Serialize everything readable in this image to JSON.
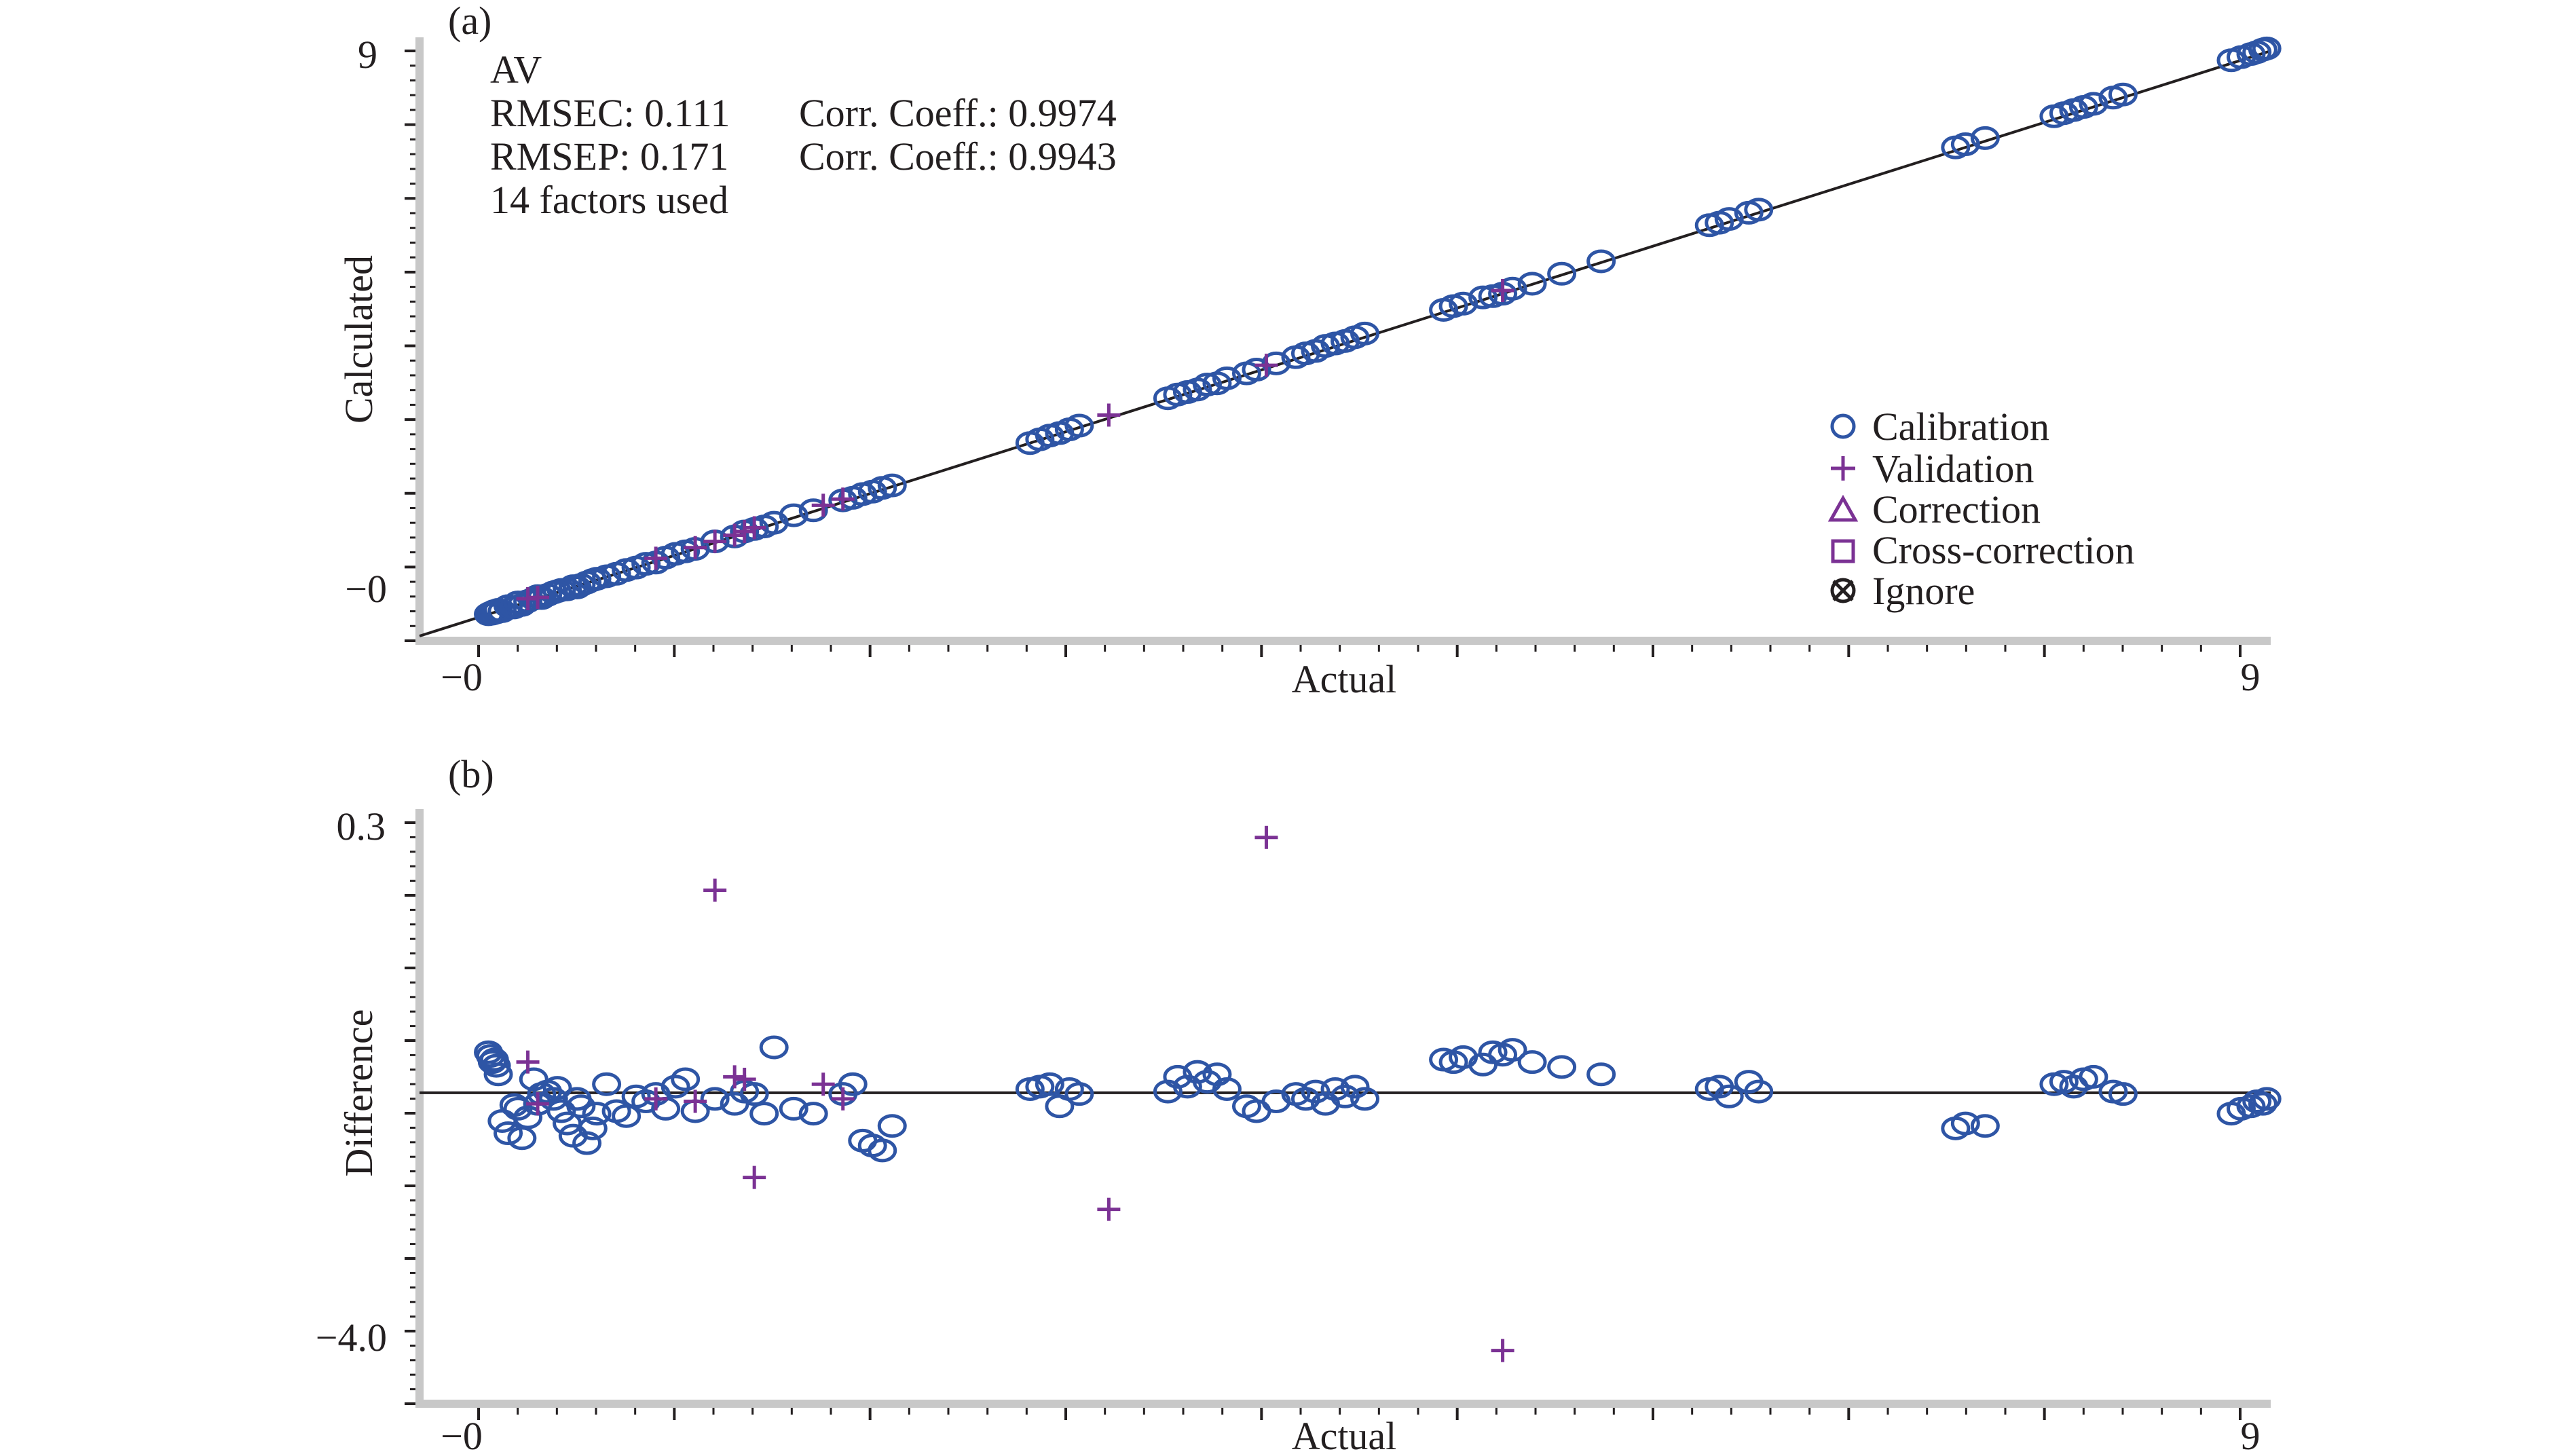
{
  "chart_data": [
    {
      "panel": "(a)",
      "type": "scatter",
      "title": "AV",
      "xlabel": "Actual",
      "ylabel": "Calculated",
      "xlim": [
        -0.3,
        9.1
      ],
      "ylim": [
        -0.3,
        9.1
      ],
      "x_tick_labels": [
        "−0",
        "9"
      ],
      "y_tick_labels": [
        "9",
        "−0"
      ],
      "stats": [
        {
          "label": "RMSEC: 0.111",
          "corr": "Corr. Coeff.: 0.9974"
        },
        {
          "label": "RMSEP: 0.171",
          "corr": "Corr. Coeff.: 0.9943"
        }
      ],
      "factors_text": "14 factors used",
      "reference_line": {
        "type": "identity",
        "slope": 1,
        "intercept": 0
      },
      "legend": {
        "placement": "right",
        "entries": [
          {
            "label": "Calibration",
            "marker": "circle",
            "color": "#2e55a5"
          },
          {
            "label": "Validation",
            "marker": "plus",
            "color": "#7b3294"
          },
          {
            "label": "Correction",
            "marker": "triangle",
            "color": "#7b3294"
          },
          {
            "label": "Cross-correction",
            "marker": "square",
            "color": "#7b3294"
          },
          {
            "label": "Ignore",
            "marker": "crossed-circle",
            "color": "#231f20"
          }
        ]
      },
      "series": [
        {
          "name": "Calibration",
          "marker": "circle",
          "color": "#2e55a5",
          "x": [
            0.05,
            0.06,
            0.07,
            0.08,
            0.09,
            0.1,
            0.12,
            0.15,
            0.18,
            0.2,
            0.22,
            0.25,
            0.28,
            0.3,
            0.32,
            0.35,
            0.38,
            0.4,
            0.42,
            0.45,
            0.48,
            0.5,
            0.52,
            0.55,
            0.58,
            0.6,
            0.65,
            0.7,
            0.75,
            0.8,
            0.85,
            0.9,
            0.95,
            1.0,
            1.05,
            1.1,
            1.2,
            1.3,
            1.35,
            1.4,
            1.45,
            1.5,
            1.6,
            1.7,
            1.85,
            1.9,
            1.95,
            2.0,
            2.05,
            2.1,
            2.8,
            2.85,
            2.9,
            2.95,
            3.0,
            3.05,
            3.5,
            3.55,
            3.6,
            3.65,
            3.7,
            3.75,
            3.8,
            3.9,
            3.95,
            4.05,
            4.15,
            4.2,
            4.25,
            4.3,
            4.35,
            4.4,
            4.45,
            4.5,
            4.9,
            4.95,
            5.0,
            5.1,
            5.15,
            5.2,
            5.25,
            5.35,
            5.5,
            5.7,
            6.25,
            6.3,
            6.35,
            6.45,
            6.5,
            7.5,
            7.55,
            7.65,
            8.0,
            8.05,
            8.1,
            8.15,
            8.2,
            8.3,
            8.35,
            8.9,
            8.95,
            9.0,
            9.03,
            9.06,
            9.08
          ],
          "y": [
            0.05,
            0.07,
            0.06,
            0.1,
            0.08,
            0.12,
            0.1,
            0.18,
            0.16,
            0.24,
            0.2,
            0.26,
            0.3,
            0.34,
            0.31,
            0.36,
            0.4,
            0.42,
            0.44,
            0.45,
            0.5,
            0.48,
            0.52,
            0.56,
            0.6,
            0.62,
            0.66,
            0.7,
            0.76,
            0.8,
            0.86,
            0.88,
            0.96,
            1.02,
            1.06,
            1.1,
            1.22,
            1.3,
            1.38,
            1.42,
            1.46,
            1.52,
            1.64,
            1.72,
            1.88,
            1.92,
            1.98,
            2.02,
            2.08,
            2.12,
            2.8,
            2.86,
            2.92,
            2.96,
            3.02,
            3.08,
            3.52,
            3.58,
            3.62,
            3.66,
            3.74,
            3.76,
            3.84,
            3.92,
            3.98,
            4.08,
            4.18,
            4.24,
            4.28,
            4.36,
            4.4,
            4.44,
            4.5,
            4.56,
            4.94,
            5.0,
            5.04,
            5.14,
            5.16,
            5.2,
            5.28,
            5.36,
            5.52,
            5.72,
            6.3,
            6.34,
            6.4,
            6.5,
            6.55,
            7.55,
            7.6,
            7.7,
            8.05,
            8.1,
            8.15,
            8.2,
            8.25,
            8.35,
            8.4,
            8.95,
            9.0,
            9.05,
            9.08,
            9.12,
            9.14
          ]
        },
        {
          "name": "Validation",
          "marker": "plus",
          "color": "#7b3294",
          "x": [
            0.25,
            0.3,
            0.9,
            1.1,
            1.2,
            1.3,
            1.35,
            1.4,
            1.75,
            1.85,
            3.2,
            4.0,
            5.2
          ],
          "y": [
            0.3,
            0.32,
            0.95,
            1.12,
            1.22,
            1.32,
            1.38,
            1.44,
            1.8,
            1.9,
            3.25,
            4.05,
            5.25
          ]
        }
      ]
    },
    {
      "panel": "(b)",
      "type": "scatter",
      "xlabel": "Actual",
      "ylabel": "Difference",
      "xlim": [
        -0.3,
        9.1
      ],
      "ylim": [
        -4.35,
        0.35
      ],
      "x_tick_labels": [
        "−0",
        "9"
      ],
      "y_tick_labels": [
        "0.3",
        "−4.0"
      ],
      "reference_line": {
        "type": "horizontal",
        "y": -1.85
      },
      "series": [
        {
          "name": "Calibration",
          "marker": "circle",
          "color": "#2e55a5",
          "x": [
            0.05,
            0.06,
            0.07,
            0.08,
            0.09,
            0.1,
            0.12,
            0.15,
            0.18,
            0.2,
            0.22,
            0.25,
            0.28,
            0.3,
            0.32,
            0.35,
            0.38,
            0.4,
            0.42,
            0.45,
            0.48,
            0.5,
            0.52,
            0.55,
            0.58,
            0.6,
            0.65,
            0.7,
            0.75,
            0.8,
            0.85,
            0.9,
            0.95,
            1.0,
            1.05,
            1.1,
            1.2,
            1.3,
            1.35,
            1.4,
            1.45,
            1.5,
            1.6,
            1.7,
            1.85,
            1.9,
            1.95,
            2.0,
            2.05,
            2.1,
            2.8,
            2.85,
            2.9,
            2.95,
            3.0,
            3.05,
            3.5,
            3.55,
            3.6,
            3.65,
            3.7,
            3.75,
            3.8,
            3.9,
            3.95,
            4.05,
            4.15,
            4.2,
            4.25,
            4.3,
            4.35,
            4.4,
            4.45,
            4.5,
            4.9,
            4.95,
            5.0,
            5.1,
            5.15,
            5.2,
            5.25,
            5.35,
            5.5,
            5.7,
            6.25,
            6.3,
            6.35,
            6.45,
            6.5,
            7.5,
            7.55,
            7.65,
            8.0,
            8.05,
            8.1,
            8.15,
            8.2,
            8.3,
            8.35,
            8.9,
            8.95,
            9.0,
            9.03,
            9.06,
            9.08
          ],
          "y": [
            -1.52,
            -1.55,
            -1.6,
            -1.58,
            -1.63,
            -1.7,
            -2.08,
            -2.18,
            -1.95,
            -1.98,
            -2.22,
            -2.05,
            -1.74,
            -1.94,
            -1.86,
            -1.84,
            -1.9,
            -1.81,
            -2.0,
            -2.1,
            -2.2,
            -1.9,
            -1.96,
            -2.26,
            -2.14,
            -2.02,
            -1.78,
            -2.0,
            -2.04,
            -1.88,
            -1.92,
            -1.86,
            -1.98,
            -1.8,
            -1.74,
            -2.0,
            -1.9,
            -1.94,
            -1.84,
            -1.86,
            -2.02,
            -1.48,
            -1.98,
            -2.02,
            -1.86,
            -1.78,
            -2.24,
            -2.28,
            -2.32,
            -2.12,
            -1.82,
            -1.8,
            -1.78,
            -1.96,
            -1.82,
            -1.86,
            -1.84,
            -1.72,
            -1.8,
            -1.68,
            -1.76,
            -1.7,
            -1.82,
            -1.96,
            -2.0,
            -1.92,
            -1.86,
            -1.9,
            -1.84,
            -1.94,
            -1.82,
            -1.88,
            -1.8,
            -1.9,
            -1.58,
            -1.6,
            -1.56,
            -1.62,
            -1.52,
            -1.54,
            -1.5,
            -1.6,
            -1.64,
            -1.7,
            -1.82,
            -1.8,
            -1.88,
            -1.76,
            -1.84,
            -2.14,
            -2.1,
            -2.12,
            -1.78,
            -1.76,
            -1.8,
            -1.74,
            -1.72,
            -1.84,
            -1.86,
            -2.02,
            -1.98,
            -1.96,
            -1.92,
            -1.94,
            -1.9
          ]
        },
        {
          "name": "Validation",
          "marker": "plus",
          "color": "#7b3294",
          "x": [
            0.25,
            0.3,
            0.9,
            1.1,
            1.2,
            1.3,
            1.35,
            1.4,
            1.75,
            1.85,
            3.2,
            4.0,
            5.2
          ],
          "y": [
            -1.6,
            -1.94,
            -1.9,
            -1.92,
            -0.2,
            -1.72,
            -1.74,
            -2.54,
            -1.78,
            -1.9,
            -2.8,
            0.23,
            -3.95
          ]
        }
      ]
    }
  ]
}
